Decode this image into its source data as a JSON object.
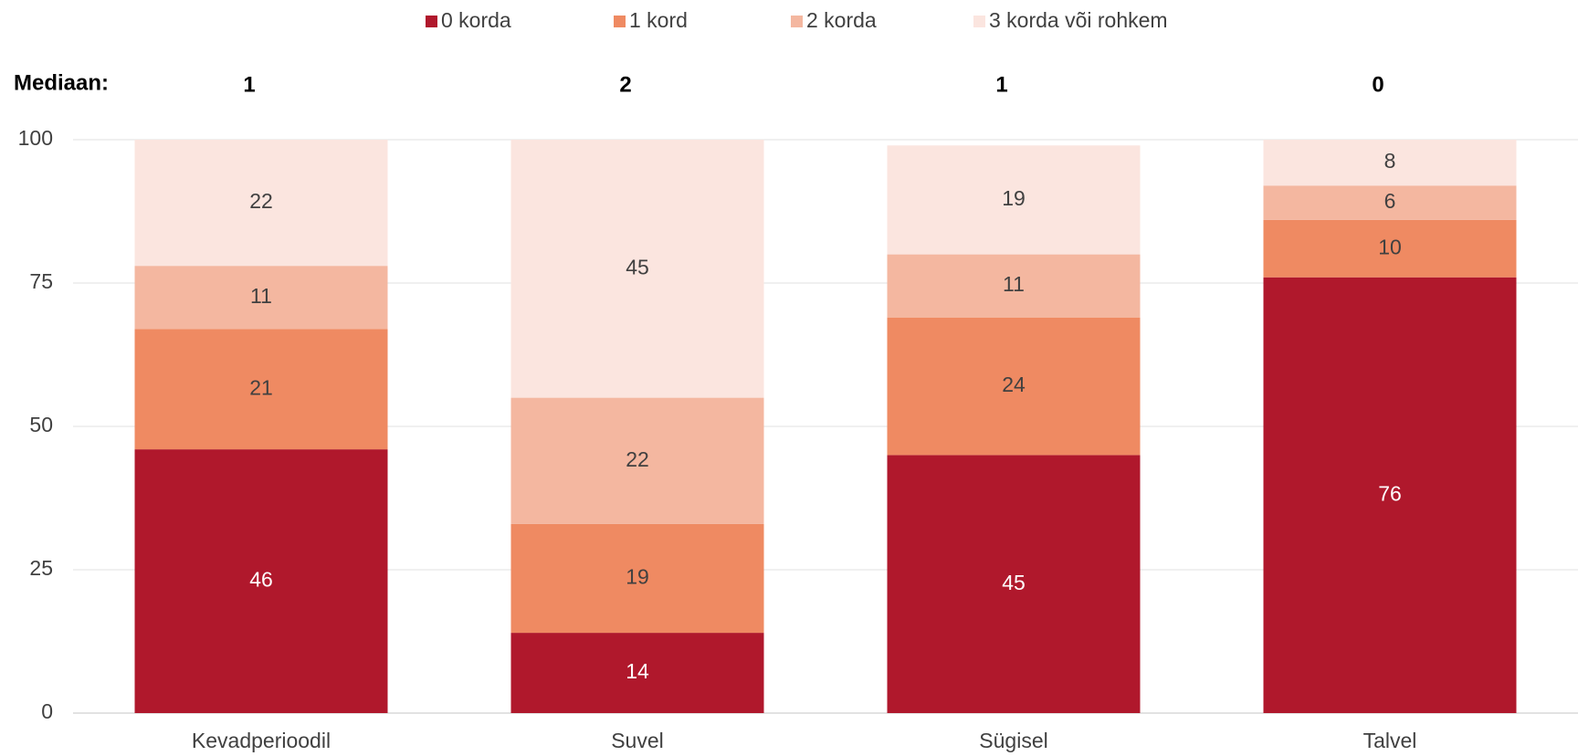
{
  "chart_data": {
    "type": "stacked_bar",
    "categories": [
      "Kevadperioodil",
      "Suvel",
      "Sügisel",
      "Talvel"
    ],
    "series": [
      {
        "name": "0 korda",
        "color": "#b0182c",
        "values": [
          46,
          14,
          45,
          76
        ]
      },
      {
        "name": "1 kord",
        "color": "#ef8a62",
        "values": [
          21,
          19,
          24,
          10
        ]
      },
      {
        "name": "2 korda",
        "color": "#f4b7a0",
        "values": [
          11,
          22,
          11,
          6
        ]
      },
      {
        "name": "3 korda või rohkem",
        "color": "#fbe5df",
        "values": [
          22,
          45,
          19,
          8
        ]
      }
    ],
    "median_label": "Mediaan:",
    "medians": [
      1,
      2,
      1,
      0
    ],
    "ylim": [
      0,
      100
    ],
    "yticks": [
      0,
      25,
      50,
      75,
      100
    ],
    "grid": true,
    "legend": "top"
  }
}
